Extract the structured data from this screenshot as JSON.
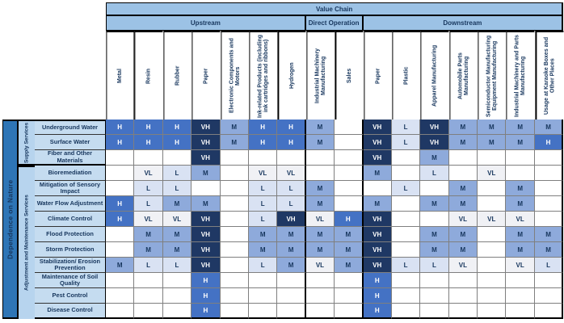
{
  "chart_data": {
    "type": "heatmap",
    "title": "Value Chain",
    "ylabel": "Dependence on Nature",
    "value_scale": [
      "VL",
      "L",
      "M",
      "H",
      "VH"
    ],
    "legend_colors": {
      "VH": {
        "bg": "#1F3864",
        "fg": "#FFFFFF"
      },
      "H": {
        "bg": "#4472C4",
        "fg": "#FFFFFF"
      },
      "M": {
        "bg": "#8EAADB",
        "fg": "#17365D"
      },
      "L": {
        "bg": "#D9E2F3",
        "fg": "#17365D"
      },
      "VL": {
        "bg": "#F0F1F5",
        "fg": "#17365D"
      }
    },
    "x_groups": [
      {
        "label": "Upstream",
        "categories": [
          "Metal",
          "Resin",
          "Rubber",
          "Paper",
          "Electronic Components and Motors",
          "Ink-related Products (including ink cartridges and ribbons)",
          "Hydrogen"
        ]
      },
      {
        "label": "Direct Operation",
        "categories": [
          "Industrial Machinery Manufacturing",
          "Sales"
        ]
      },
      {
        "label": "Downstream",
        "categories": [
          "Paper",
          "Plastic",
          "Apparel Manufacturing",
          "Automobile Parts Manufacturing",
          "Semiconductor Manufacturing Equipment Manufacturing",
          "Industrial Machinery and Parts Manufacturing",
          "Usage at Karaoke Boxes and Other Places"
        ]
      }
    ],
    "y_groups": [
      {
        "label": "Supply Services",
        "categories": [
          "Underground Water",
          "Surface Water",
          "Fiber and Other Materials"
        ]
      },
      {
        "label": "Adjustment and Maintenance Services",
        "categories": [
          "Bioremediation",
          "Mitigation of Sensory Impact",
          "Water Flow Adjustment",
          "Climate Control",
          "Flood Protection",
          "Storm Protection",
          "Stabilization/ Erosion Prevention",
          "Maintenance of Soil Quality",
          "Pest Control",
          "Disease Control"
        ]
      }
    ],
    "values": [
      [
        "H",
        "H",
        "H",
        "VH",
        "M",
        "H",
        "H",
        "M",
        "",
        "VH",
        "L",
        "VH",
        "M",
        "M",
        "M",
        "M"
      ],
      [
        "H",
        "H",
        "H",
        "VH",
        "M",
        "H",
        "H",
        "M",
        "",
        "VH",
        "L",
        "VH",
        "M",
        "M",
        "M",
        "H"
      ],
      [
        "",
        "",
        "",
        "VH",
        "",
        "",
        "",
        "",
        "",
        "VH",
        "",
        "M",
        "",
        "",
        "",
        ""
      ],
      [
        "",
        "VL",
        "L",
        "M",
        "",
        "VL",
        "VL",
        "",
        "",
        "M",
        "",
        "L",
        "",
        "VL",
        "",
        ""
      ],
      [
        "",
        "L",
        "L",
        "",
        "",
        "L",
        "L",
        "M",
        "",
        "",
        "L",
        "",
        "M",
        "",
        "M",
        ""
      ],
      [
        "H",
        "L",
        "M",
        "M",
        "",
        "L",
        "L",
        "M",
        "",
        "M",
        "",
        "M",
        "M",
        "",
        "M",
        ""
      ],
      [
        "H",
        "VL",
        "VL",
        "VH",
        "",
        "L",
        "VH",
        "VL",
        "H",
        "VH",
        "",
        "",
        "VL",
        "VL",
        "VL",
        ""
      ],
      [
        "",
        "M",
        "M",
        "VH",
        "",
        "M",
        "M",
        "M",
        "M",
        "VH",
        "",
        "M",
        "M",
        "",
        "M",
        "M"
      ],
      [
        "",
        "M",
        "M",
        "VH",
        "",
        "M",
        "M",
        "M",
        "M",
        "VH",
        "",
        "M",
        "M",
        "",
        "M",
        "M"
      ],
      [
        "M",
        "L",
        "L",
        "VH",
        "",
        "L",
        "M",
        "VL",
        "M",
        "VH",
        "L",
        "L",
        "VL",
        "",
        "VL",
        "L"
      ],
      [
        "",
        "",
        "",
        "H",
        "",
        "",
        "",
        "",
        "",
        "H",
        "",
        "",
        "",
        "",
        "",
        ""
      ],
      [
        "",
        "",
        "",
        "H",
        "",
        "",
        "",
        "",
        "",
        "H",
        "",
        "",
        "",
        "",
        "",
        ""
      ],
      [
        "",
        "",
        "",
        "H",
        "",
        "",
        "",
        "",
        "",
        "H",
        "",
        "",
        "",
        "",
        "",
        ""
      ]
    ]
  }
}
